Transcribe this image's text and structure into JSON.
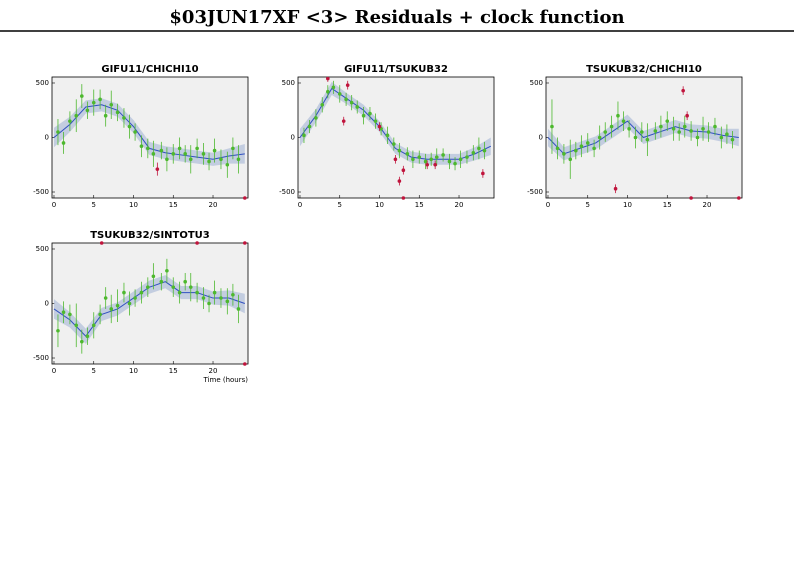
{
  "title": "$03JUN17XF <3> Residuals + clock function",
  "chart_data": [
    {
      "type": "scatter",
      "title": "GIFU11/CHICHI10",
      "xlim": [
        -0.25,
        24.4
      ],
      "ylim": [
        -555,
        555
      ],
      "xticks": [
        0,
        5,
        10,
        15,
        20
      ],
      "yticks": [
        -500,
        0,
        500
      ],
      "series": [
        {
          "mode": "band",
          "color": "#3050c0",
          "x": [
            0,
            2,
            4,
            6,
            8,
            10,
            12,
            14,
            16,
            18,
            20,
            22,
            24
          ],
          "values": [
            0,
            120,
            280,
            300,
            250,
            100,
            -100,
            -140,
            -160,
            -180,
            -200,
            -170,
            -150
          ],
          "errors": [
            90,
            70,
            60,
            60,
            60,
            60,
            60,
            60,
            60,
            60,
            60,
            70,
            90
          ]
        },
        {
          "mode": "points",
          "color": "#4db82e",
          "x": [
            0.5,
            1.2,
            2,
            2.8,
            3.5,
            4.2,
            5,
            5.8,
            6.5,
            7.2,
            8,
            8.8,
            9.5,
            10.2,
            11,
            11.8,
            12.5,
            13.5,
            14.2,
            15,
            15.8,
            16.5,
            17.2,
            18,
            18.8,
            19.5,
            20.2,
            21,
            21.8,
            22.5,
            23.2
          ],
          "values": [
            50,
            -50,
            150,
            200,
            380,
            250,
            320,
            350,
            200,
            300,
            230,
            180,
            100,
            50,
            -80,
            -100,
            -150,
            -120,
            -200,
            -150,
            -100,
            -150,
            -200,
            -100,
            -150,
            -220,
            -120,
            -200,
            -250,
            -100,
            -200
          ],
          "errors": [
            120,
            100,
            90,
            150,
            110,
            80,
            120,
            90,
            100,
            130,
            80,
            90,
            110,
            80,
            100,
            90,
            120,
            80,
            110,
            90,
            100,
            80,
            130,
            90,
            100,
            80,
            110,
            90,
            120,
            100,
            130
          ]
        },
        {
          "mode": "points",
          "color": "#c0143c",
          "x": [
            13,
            24
          ],
          "values": [
            -290,
            -555
          ],
          "errors": [
            60,
            0
          ]
        }
      ]
    },
    {
      "type": "scatter",
      "title": "GIFU11/TSUKUB32",
      "xlim": [
        -0.25,
        24.4
      ],
      "ylim": [
        -555,
        555
      ],
      "xticks": [
        0,
        5,
        10,
        15,
        20
      ],
      "yticks": [
        -500,
        0,
        500
      ],
      "series": [
        {
          "mode": "band",
          "color": "#3050c0",
          "x": [
            0,
            2,
            4,
            6,
            8,
            10,
            12,
            14,
            16,
            18,
            20,
            22,
            24
          ],
          "values": [
            0,
            200,
            450,
            350,
            250,
            100,
            -100,
            -180,
            -200,
            -200,
            -200,
            -150,
            -80
          ],
          "errors": [
            80,
            60,
            60,
            50,
            50,
            50,
            50,
            50,
            50,
            50,
            50,
            60,
            80
          ]
        },
        {
          "mode": "points",
          "color": "#4db82e",
          "x": [
            0.5,
            1.2,
            2,
            2.8,
            3.5,
            4.2,
            5,
            5.8,
            6.5,
            7.2,
            8,
            8.8,
            9.5,
            10.2,
            11,
            11.8,
            12.5,
            13.5,
            14.2,
            15,
            15.8,
            16.5,
            17.2,
            18,
            18.8,
            19.5,
            20.2,
            21,
            21.8,
            22.5,
            23.2
          ],
          "values": [
            20,
            100,
            180,
            300,
            420,
            460,
            400,
            350,
            320,
            280,
            200,
            220,
            150,
            80,
            20,
            -60,
            -120,
            -150,
            -200,
            -180,
            -220,
            -200,
            -180,
            -160,
            -220,
            -240,
            -200,
            -180,
            -140,
            -100,
            -120
          ],
          "errors": [
            70,
            60,
            80,
            70,
            60,
            60,
            80,
            60,
            70,
            60,
            80,
            60,
            70,
            60,
            80,
            60,
            70,
            60,
            80,
            60,
            70,
            60,
            80,
            60,
            70,
            60,
            80,
            60,
            70,
            100,
            80
          ]
        },
        {
          "mode": "points",
          "color": "#c0143c",
          "x": [
            3.5,
            5.5,
            6,
            10,
            12,
            12.5,
            13,
            13,
            16,
            17,
            23
          ],
          "values": [
            540,
            150,
            480,
            100,
            -200,
            -400,
            -555,
            -300,
            -250,
            -250,
            -330
          ],
          "errors": [
            30,
            40,
            40,
            40,
            40,
            40,
            0,
            40,
            40,
            40,
            40
          ]
        }
      ]
    },
    {
      "type": "scatter",
      "title": "TSUKUB32/CHICHI10",
      "xlim": [
        -0.25,
        24.4
      ],
      "ylim": [
        -555,
        555
      ],
      "xticks": [
        0,
        5,
        10,
        15,
        20
      ],
      "yticks": [
        -500,
        0,
        500
      ],
      "series": [
        {
          "mode": "band",
          "color": "#3050c0",
          "x": [
            0,
            2,
            4,
            6,
            8,
            10,
            12,
            14,
            16,
            18,
            20,
            22,
            24
          ],
          "values": [
            0,
            -150,
            -100,
            -50,
            50,
            150,
            0,
            50,
            100,
            60,
            50,
            20,
            0
          ],
          "errors": [
            80,
            60,
            60,
            60,
            60,
            60,
            60,
            60,
            60,
            60,
            60,
            60,
            80
          ]
        },
        {
          "mode": "points",
          "color": "#4db82e",
          "x": [
            0.5,
            1.2,
            2,
            2.8,
            3.5,
            4.2,
            5,
            5.8,
            6.5,
            7.2,
            8,
            8.8,
            9.5,
            10.2,
            11,
            11.8,
            12.5,
            13.5,
            14.2,
            15,
            15.8,
            16.5,
            17.2,
            18,
            18.8,
            19.5,
            20.2,
            21,
            21.8,
            22.5,
            23.2
          ],
          "values": [
            100,
            -100,
            -150,
            -200,
            -120,
            -80,
            -50,
            -100,
            0,
            50,
            100,
            200,
            150,
            80,
            0,
            50,
            -20,
            60,
            100,
            150,
            80,
            50,
            100,
            60,
            0,
            80,
            50,
            100,
            0,
            30,
            -20
          ],
          "errors": [
            250,
            100,
            90,
            180,
            80,
            100,
            90,
            80,
            110,
            90,
            100,
            130,
            90,
            80,
            100,
            90,
            150,
            80,
            100,
            90,
            110,
            80,
            100,
            90,
            80,
            110,
            90,
            80,
            100,
            90,
            80
          ]
        },
        {
          "mode": "points",
          "color": "#c0143c",
          "x": [
            8.5,
            17,
            17.5,
            18,
            24
          ],
          "values": [
            -470,
            430,
            200,
            -555,
            -555
          ],
          "errors": [
            40,
            40,
            40,
            0,
            0
          ]
        }
      ]
    },
    {
      "type": "scatter",
      "title": "TSUKUB32/SINTOTU3",
      "x_label": "Time (hours)",
      "xlim": [
        -0.25,
        24.4
      ],
      "ylim": [
        -555,
        555
      ],
      "xticks": [
        0,
        5,
        10,
        15,
        20
      ],
      "yticks": [
        -500,
        0,
        500
      ],
      "series": [
        {
          "mode": "band",
          "color": "#3050c0",
          "x": [
            0,
            2,
            4,
            6,
            8,
            10,
            12,
            14,
            16,
            18,
            20,
            22,
            24
          ],
          "values": [
            -50,
            -150,
            -300,
            -100,
            -50,
            50,
            150,
            200,
            100,
            100,
            50,
            50,
            0
          ],
          "errors": [
            90,
            70,
            70,
            60,
            60,
            60,
            60,
            60,
            60,
            60,
            60,
            70,
            90
          ]
        },
        {
          "mode": "points",
          "color": "#4db82e",
          "x": [
            0.5,
            1.2,
            2,
            2.8,
            3.5,
            4.2,
            5,
            5.8,
            6.5,
            7.2,
            8,
            8.8,
            9.5,
            10.2,
            11,
            11.8,
            12.5,
            13.5,
            14.2,
            15,
            15.8,
            16.5,
            17.2,
            18,
            18.8,
            19.5,
            20.2,
            21,
            21.8,
            22.5,
            23.2
          ],
          "values": [
            -250,
            -80,
            -100,
            -200,
            -350,
            -300,
            -200,
            -100,
            50,
            -50,
            -20,
            100,
            0,
            50,
            100,
            150,
            250,
            200,
            300,
            150,
            100,
            200,
            150,
            100,
            50,
            0,
            100,
            50,
            20,
            80,
            -50
          ],
          "errors": [
            150,
            100,
            90,
            200,
            110,
            80,
            120,
            90,
            100,
            130,
            150,
            90,
            110,
            80,
            100,
            90,
            120,
            80,
            110,
            90,
            100,
            80,
            130,
            90,
            100,
            80,
            110,
            90,
            120,
            100,
            130
          ]
        },
        {
          "mode": "points",
          "color": "#c0143c",
          "x": [
            6,
            18,
            24,
            24
          ],
          "values": [
            555,
            555,
            555,
            -555
          ],
          "errors": [
            0,
            0,
            0,
            0
          ]
        }
      ]
    }
  ]
}
